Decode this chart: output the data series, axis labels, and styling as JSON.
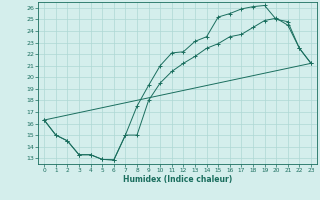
{
  "xlabel": "Humidex (Indice chaleur)",
  "bg_color": "#d4eeec",
  "grid_color": "#aed8d4",
  "line_color": "#1a6e5e",
  "xlim": [
    -0.5,
    23.5
  ],
  "ylim": [
    12.5,
    26.5
  ],
  "xticks": [
    0,
    1,
    2,
    3,
    4,
    5,
    6,
    7,
    8,
    9,
    10,
    11,
    12,
    13,
    14,
    15,
    16,
    17,
    18,
    19,
    20,
    21,
    22,
    23
  ],
  "yticks": [
    13,
    14,
    15,
    16,
    17,
    18,
    19,
    20,
    21,
    22,
    23,
    24,
    25,
    26
  ],
  "line1_x": [
    0,
    1,
    2,
    3,
    4,
    5,
    6,
    7,
    8,
    9,
    10,
    11,
    12,
    13,
    14,
    15,
    16,
    17,
    18,
    19,
    20,
    21,
    22,
    23
  ],
  "line1_y": [
    16.3,
    15.0,
    14.5,
    13.3,
    13.3,
    12.9,
    12.85,
    15.0,
    17.5,
    19.3,
    21.0,
    22.1,
    22.2,
    23.1,
    23.5,
    25.2,
    25.5,
    25.9,
    26.1,
    26.2,
    25.0,
    24.8,
    22.5,
    21.2
  ],
  "line2_x": [
    0,
    1,
    2,
    3,
    4,
    5,
    6,
    7,
    8,
    9,
    10,
    11,
    12,
    13,
    14,
    15,
    16,
    17,
    18,
    19,
    20,
    21,
    22,
    23
  ],
  "line2_y": [
    16.3,
    15.0,
    14.5,
    13.3,
    13.3,
    12.9,
    12.85,
    15.0,
    15.0,
    18.0,
    19.5,
    20.5,
    21.2,
    21.8,
    22.5,
    22.9,
    23.5,
    23.7,
    24.3,
    24.9,
    25.1,
    24.5,
    22.5,
    21.2
  ],
  "line3_x": [
    0,
    23
  ],
  "line3_y": [
    16.3,
    21.2
  ]
}
